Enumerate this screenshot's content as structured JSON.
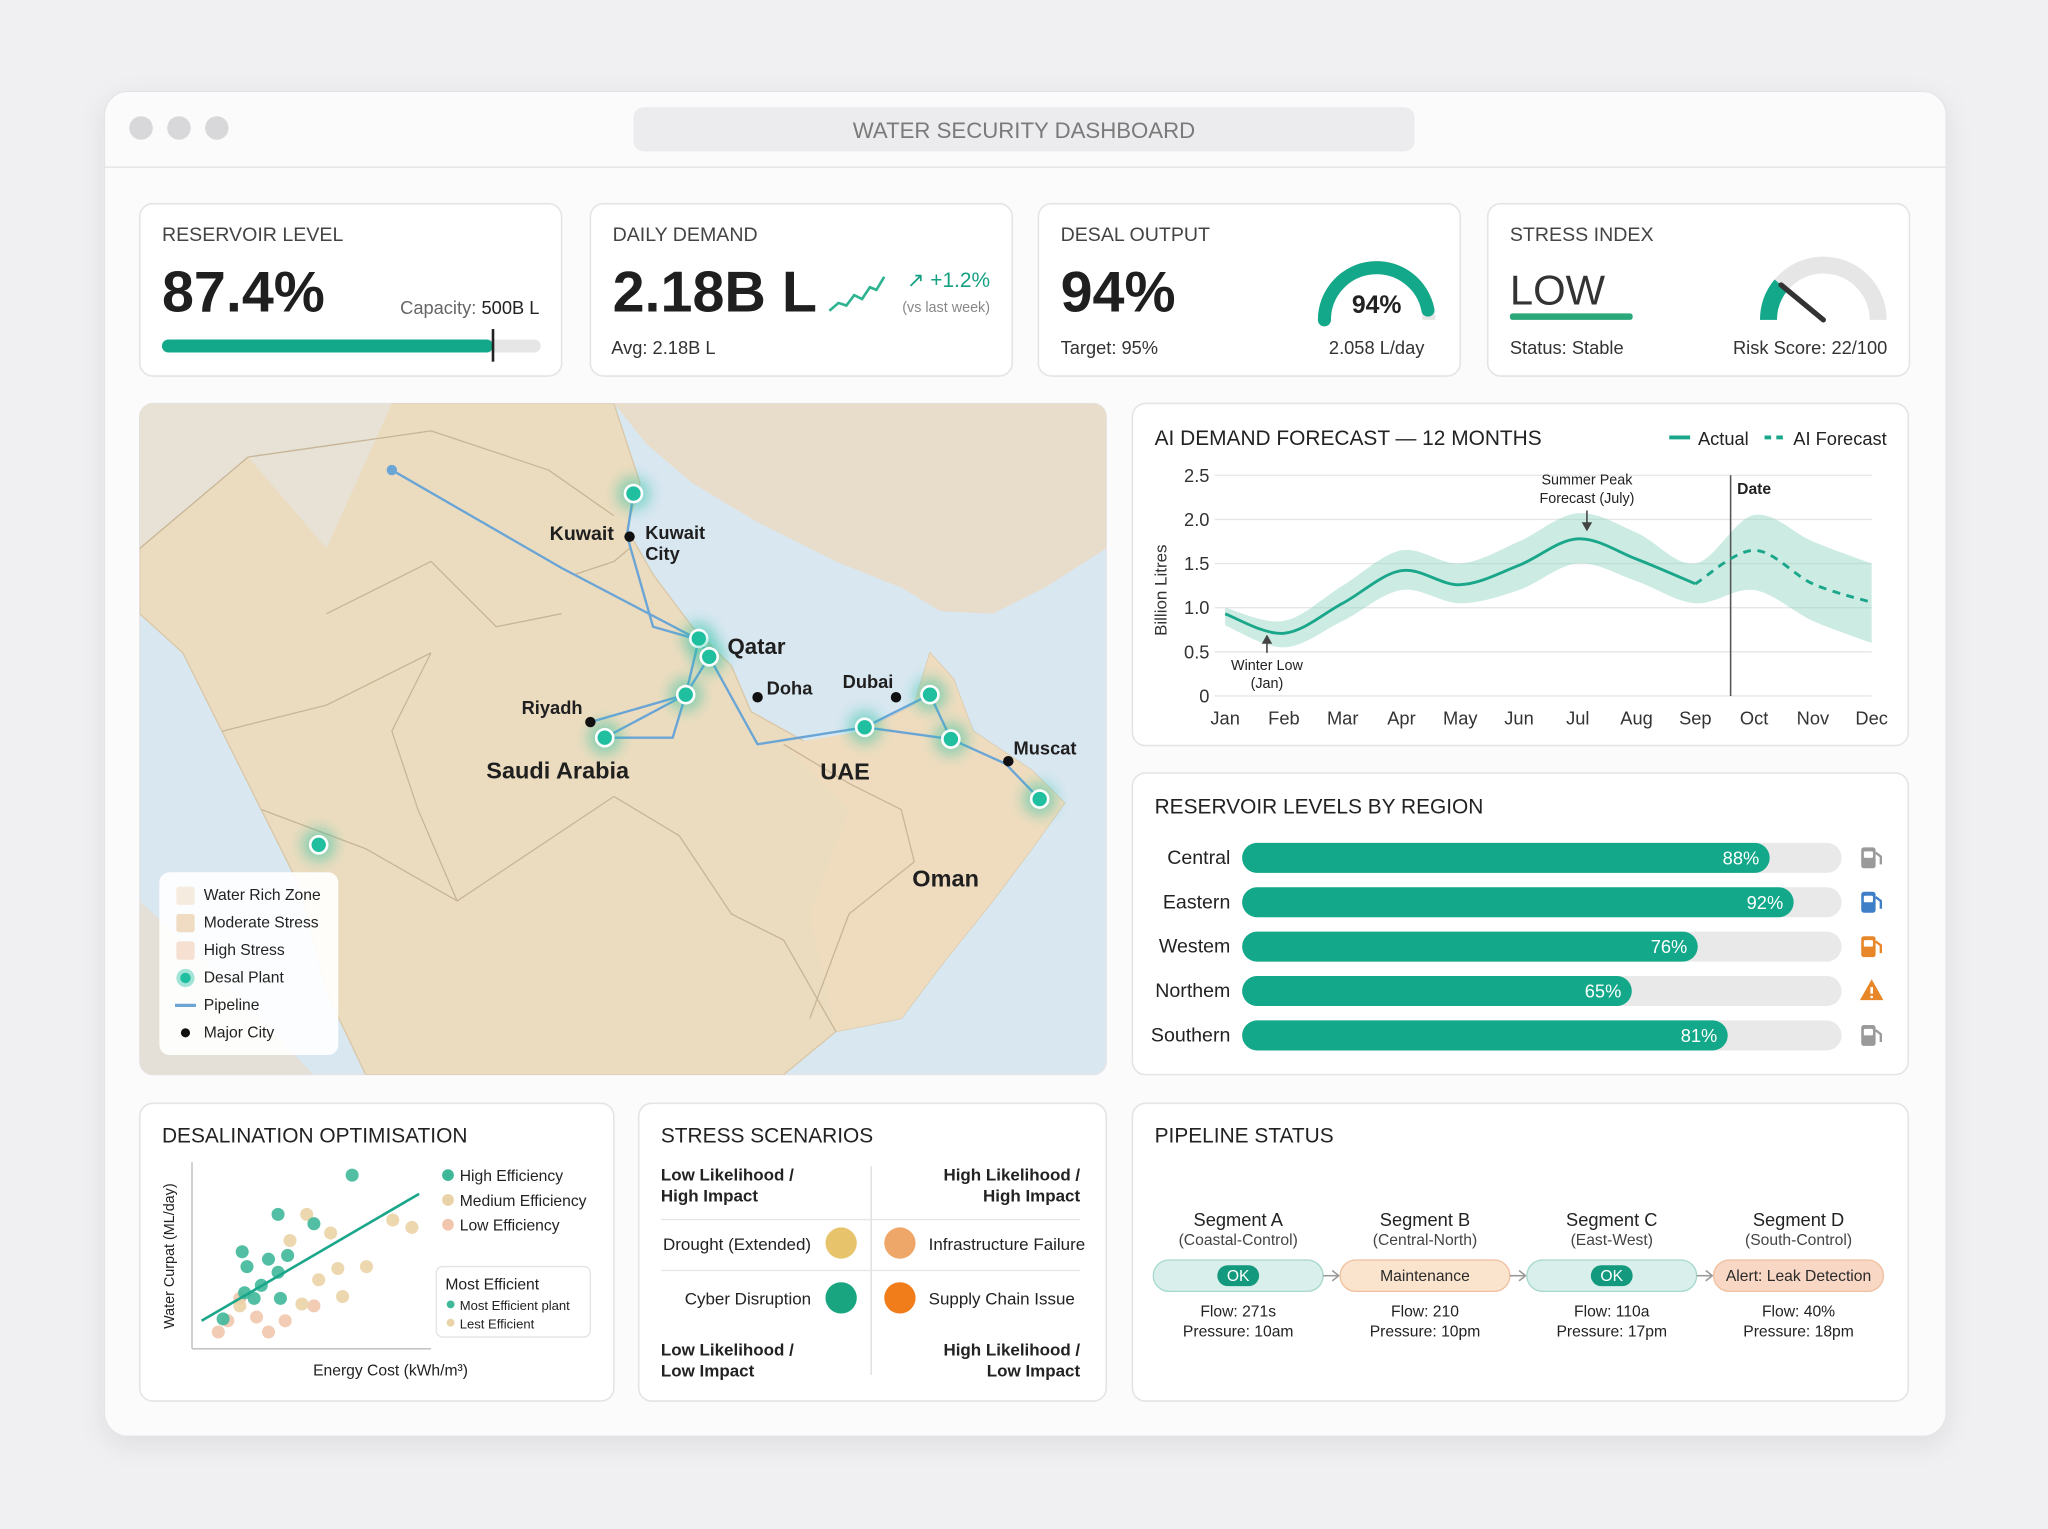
{
  "window": {
    "title": "WATER SECURITY DASHBOARD"
  },
  "kpis": [
    {
      "title": "RESERVOIR LEVEL",
      "value": "87.4%",
      "capacity_label": "Capacity:",
      "capacity": "500B L",
      "level": {
        "value": 87.4,
        "range": [
          0,
          100
        ]
      }
    },
    {
      "title": "DAILY DEMAND",
      "value": "2.18B L",
      "change": "↗ +1.2%",
      "change_note": "(vs last week)",
      "avg": "Avg: 2.18B L"
    },
    {
      "title": "DESAL OUTPUT",
      "value": "94%",
      "target": "Target: 95%",
      "gauge": {
        "value": 94,
        "label": "94%",
        "range": [
          0,
          100
        ]
      },
      "rate": "2.058 L/day"
    },
    {
      "title": "STRESS INDEX",
      "value": "LOW",
      "status": "Status: Stable",
      "risk": {
        "value": 22,
        "label": "Risk Score: 22/100",
        "range": [
          0,
          100
        ]
      }
    }
  ],
  "map": {
    "labels": [
      [
        "Kuwait"
      ],
      [
        "Kuwait",
        "City"
      ],
      [
        "Qatar"
      ],
      [
        "Doha"
      ],
      [
        "Dubai"
      ],
      [
        "Riyadh"
      ],
      [
        "Saudi Arabia"
      ],
      [
        "UAE"
      ],
      [
        "Muscat"
      ],
      [
        "Oman"
      ]
    ],
    "legend": [
      {
        "label": "Water Rich Zone",
        "color": "#f5ebdf",
        "shape": "square"
      },
      {
        "label": "Moderate Stress",
        "color": "#f0dcc2",
        "shape": "square"
      },
      {
        "label": "High Stress",
        "color": "#f6e0d2",
        "shape": "square"
      },
      {
        "label": "Desal Plant",
        "color": "#1fbf9f",
        "shape": "circle"
      },
      {
        "label": "Pipeline",
        "color": "#6aa5d6",
        "shape": "line"
      },
      {
        "label": "Major City",
        "color": "#111111",
        "shape": "dot"
      }
    ]
  },
  "chart_data": [
    {
      "type": "line",
      "title": "AI DEMAND FORECAST — 12 MONTHS",
      "y_label": "Billion Litres",
      "categories": [
        "Jan",
        "Feb",
        "Mar",
        "Apr",
        "May",
        "Jun",
        "Jul",
        "Aug",
        "Sep",
        "Oct",
        "Nov",
        "Dec"
      ],
      "ylim": [
        0,
        2.5
      ],
      "yticks": [
        0,
        0.5,
        {
          "value": 1,
          "label": "1.0"
        },
        1.5,
        {
          "value": 2,
          "label": "2.0"
        },
        2.5
      ],
      "grid": true,
      "series": [
        {
          "name": "Actual",
          "color": "#1aa68a",
          "dashed": false,
          "values": [
            0.93,
            0.71,
            1.05,
            1.42,
            1.26,
            1.48,
            1.78,
            1.55,
            1.27,
            null,
            null,
            null
          ]
        },
        {
          "name": "AI Forecast",
          "color": "#1aa68a",
          "dashed": true,
          "values": [
            null,
            null,
            null,
            null,
            null,
            null,
            null,
            null,
            1.27,
            1.65,
            1.27,
            1.06
          ]
        }
      ],
      "band": {
        "color": "#8fd3c1",
        "upper": [
          1.0,
          0.85,
          1.25,
          1.65,
          1.5,
          1.75,
          2.07,
          1.85,
          1.5,
          2.05,
          1.75,
          1.5
        ],
        "lower": [
          0.8,
          0.55,
          0.85,
          1.2,
          1.05,
          1.2,
          1.5,
          1.3,
          1.05,
          1.2,
          0.85,
          0.6
        ]
      },
      "annotations": [
        {
          "lines": [
            "Summer Peak",
            "Forecast (July)"
          ],
          "category": 6
        },
        {
          "lines": [
            "Winter Low",
            "(Jan)"
          ],
          "category": 0
        },
        {
          "lines": [
            "Date"
          ],
          "category": 8
        }
      ]
    },
    {
      "type": "bar",
      "orientation": "horizontal",
      "title": "RESERVOIR LEVELS BY REGION",
      "categories": [
        "Central",
        "Eastern",
        "Westem",
        "Northem",
        "Southern"
      ],
      "values": [
        88,
        92,
        76,
        65,
        81
      ],
      "value_labels": [
        "88%",
        "92%",
        "76%",
        "65%",
        "81%"
      ],
      "xlim": [
        0,
        100
      ],
      "color": "#13a889",
      "icons": [
        "pump",
        "pump",
        "pump",
        "warning",
        "pump"
      ],
      "icon_colors": [
        "#9a9a9a",
        "#3f7fc8",
        "#e8862a",
        "#e8862a",
        "#9a9a9a"
      ]
    },
    {
      "type": "scatter",
      "title": "DESALINATION OPTIMISATION",
      "x_label": "Energy Cost (kWh/m³)",
      "y_label": "Water Curpat (ML/day)",
      "xlim": [
        0,
        10
      ],
      "ylim": [
        0,
        10
      ],
      "series": [
        {
          "name": "High Efficiency",
          "color": "#3fb89a",
          "x": [
            6.7,
            3.6,
            5.1,
            2.1,
            3.2,
            4.0,
            2.3,
            3.6,
            2.9,
            2.2,
            2.6,
            3.7,
            1.3
          ],
          "y": [
            9.3,
            7.2,
            6.7,
            5.2,
            4.8,
            5.0,
            4.4,
            4.1,
            3.4,
            3.0,
            2.7,
            2.7,
            1.6
          ]
        },
        {
          "name": "Medium Efficiency",
          "color": "#ead3a6",
          "x": [
            4.8,
            4.1,
            5.8,
            7.3,
            6.1,
            5.3,
            4.6,
            6.3,
            8.4,
            9.2,
            2.0
          ],
          "y": [
            7.2,
            5.8,
            6.2,
            4.4,
            4.3,
            3.7,
            2.4,
            2.8,
            6.9,
            6.5,
            2.3
          ]
        },
        {
          "name": "Low Efficiency",
          "color": "#f1c6ad",
          "x": [
            1.5,
            1.1,
            2.7,
            2.0,
            3.9,
            5.1,
            3.2
          ],
          "y": [
            1.5,
            0.9,
            1.7,
            2.7,
            1.5,
            2.3,
            0.9
          ]
        }
      ],
      "trend": {
        "color": "#1aa68a",
        "x": [
          0.4,
          9.5
        ],
        "y": [
          1.5,
          8.3
        ]
      },
      "inset": {
        "title": "Most Efficient",
        "items": [
          {
            "text": "Most Efficient plant",
            "color": "#3fb89a"
          },
          {
            "text": "Lest Efficient",
            "color": "#ead3a6"
          }
        ]
      }
    }
  ],
  "scenarios": {
    "title": "STRESS SCENARIOS",
    "quadrants": {
      "top_left": [
        "Low Likelihood /",
        "High Impact"
      ],
      "top_right": [
        "High Likelihood /",
        "High Impact"
      ],
      "bottom_left": [
        "Low Likelihood /",
        "Low Impact"
      ],
      "bottom_right": [
        "High Likelihood /",
        "Low Impact"
      ]
    },
    "items": [
      {
        "name": "Drought (Extended)",
        "color": "#e7c46c"
      },
      {
        "name": "Infrastructure Failure",
        "color": "#eea768"
      },
      {
        "name": "Cyber Disruption",
        "color": "#18a57f"
      },
      {
        "name": "Supply Chain Issue",
        "color": "#f07d1a"
      }
    ]
  },
  "pipeline": {
    "title": "PIPELINE STATUS",
    "segments": [
      {
        "name": "Segment A",
        "route": "(Coastal-Control)",
        "status": "OK",
        "pill_color": "#d9efeb",
        "badge_color": "#13997e",
        "flow": "Flow: 271s",
        "pressure": "Pressure: 10am"
      },
      {
        "name": "Segment B",
        "route": "(Central-North)",
        "status": "Maintenance",
        "pill_color": "#fbe4cd",
        "flow": "Flow: 210",
        "pressure": "Pressure: 10pm"
      },
      {
        "name": "Segment C",
        "route": "(East-West)",
        "status": "OK",
        "pill_color": "#d9efeb",
        "badge_color": "#13997e",
        "flow": "Flow: 110a",
        "pressure": "Pressure: 17pm"
      },
      {
        "name": "Segment D",
        "route": "(South-Control)",
        "status": "Alert: Leak Detection",
        "pill_color": "#f8d7c4",
        "flow": "Flow: 40%",
        "pressure": "Pressure: 18pm"
      }
    ]
  }
}
